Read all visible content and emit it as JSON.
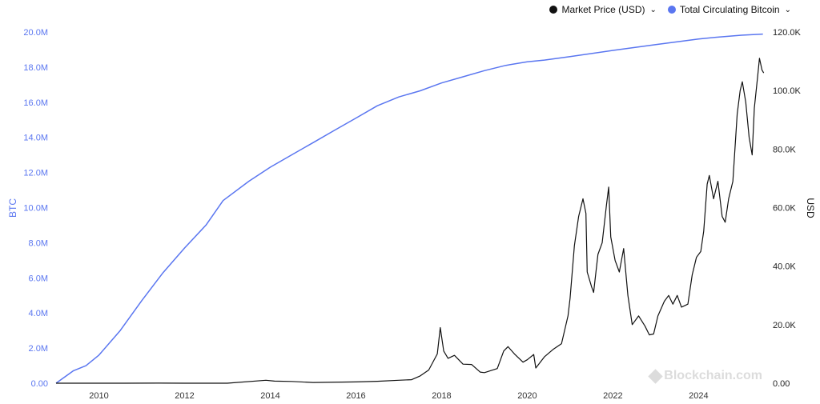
{
  "legend": {
    "price_label": "Market Price (USD)",
    "supply_label": "Total Circulating Bitcoin",
    "price_color": "#111111",
    "supply_color": "#5a76f0",
    "chevron_icon": "chevron-down-icon"
  },
  "watermark": "Blockchain.com",
  "chart_data": {
    "type": "line",
    "left_axis": {
      "label": "BTC",
      "ticks": [
        "0.00",
        "2.0M",
        "4.0M",
        "6.0M",
        "8.0M",
        "10.0M",
        "12.0M",
        "14.0M",
        "16.0M",
        "18.0M",
        "20.0M"
      ],
      "range": [
        0,
        20000000
      ]
    },
    "right_axis": {
      "label": "USD",
      "ticks": [
        "0.00",
        "20.0K",
        "40.0K",
        "60.0K",
        "80.0K",
        "100.0K",
        "120.0K"
      ],
      "range": [
        0,
        120000
      ]
    },
    "x_axis": {
      "ticks": [
        "2010",
        "2012",
        "2014",
        "2016",
        "2018",
        "2020",
        "2022",
        "2024"
      ],
      "range": [
        2009.0,
        2025.6
      ]
    },
    "series": [
      {
        "name": "Total Circulating Bitcoin",
        "axis": "left",
        "color": "#5a76f0",
        "points": [
          [
            2009.0,
            0
          ],
          [
            2009.4,
            700000
          ],
          [
            2009.7,
            1000000
          ],
          [
            2010.0,
            1600000
          ],
          [
            2010.5,
            3000000
          ],
          [
            2011.0,
            4700000
          ],
          [
            2011.5,
            6300000
          ],
          [
            2012.0,
            7700000
          ],
          [
            2012.5,
            9000000
          ],
          [
            2012.9,
            10400000
          ],
          [
            2013.5,
            11500000
          ],
          [
            2014.0,
            12300000
          ],
          [
            2014.5,
            13000000
          ],
          [
            2015.0,
            13700000
          ],
          [
            2015.5,
            14400000
          ],
          [
            2016.0,
            15100000
          ],
          [
            2016.5,
            15800000
          ],
          [
            2017.0,
            16300000
          ],
          [
            2017.5,
            16650000
          ],
          [
            2018.0,
            17100000
          ],
          [
            2018.5,
            17450000
          ],
          [
            2019.0,
            17800000
          ],
          [
            2019.5,
            18100000
          ],
          [
            2020.0,
            18300000
          ],
          [
            2020.4,
            18400000
          ],
          [
            2021.0,
            18600000
          ],
          [
            2022.0,
            18950000
          ],
          [
            2023.0,
            19280000
          ],
          [
            2024.0,
            19600000
          ],
          [
            2024.4,
            19700000
          ],
          [
            2025.0,
            19820000
          ],
          [
            2025.5,
            19880000
          ]
        ]
      },
      {
        "name": "Market Price (USD)",
        "axis": "right",
        "color": "#111111",
        "points": [
          [
            2009.0,
            0
          ],
          [
            2010.6,
            0.07
          ],
          [
            2011.4,
            15
          ],
          [
            2012.0,
            5
          ],
          [
            2013.0,
            13
          ],
          [
            2013.9,
            1000
          ],
          [
            2014.1,
            700
          ],
          [
            2014.5,
            600
          ],
          [
            2015.0,
            250
          ],
          [
            2016.0,
            430
          ],
          [
            2016.5,
            650
          ],
          [
            2017.0,
            1000
          ],
          [
            2017.3,
            1200
          ],
          [
            2017.5,
            2500
          ],
          [
            2017.7,
            4500
          ],
          [
            2017.9,
            10000
          ],
          [
            2017.97,
            19000
          ],
          [
            2018.05,
            11000
          ],
          [
            2018.15,
            8500
          ],
          [
            2018.3,
            9500
          ],
          [
            2018.5,
            6500
          ],
          [
            2018.7,
            6400
          ],
          [
            2018.9,
            3800
          ],
          [
            2019.0,
            3600
          ],
          [
            2019.3,
            5000
          ],
          [
            2019.45,
            11000
          ],
          [
            2019.55,
            12500
          ],
          [
            2019.7,
            10000
          ],
          [
            2019.9,
            7200
          ],
          [
            2020.0,
            8000
          ],
          [
            2020.15,
            9800
          ],
          [
            2020.2,
            5200
          ],
          [
            2020.4,
            9000
          ],
          [
            2020.6,
            11500
          ],
          [
            2020.8,
            13500
          ],
          [
            2020.95,
            23000
          ],
          [
            2021.0,
            29000
          ],
          [
            2021.1,
            47000
          ],
          [
            2021.2,
            57000
          ],
          [
            2021.3,
            63000
          ],
          [
            2021.37,
            58000
          ],
          [
            2021.4,
            38000
          ],
          [
            2021.5,
            33000
          ],
          [
            2021.55,
            31000
          ],
          [
            2021.65,
            44000
          ],
          [
            2021.75,
            48000
          ],
          [
            2021.85,
            61000
          ],
          [
            2021.9,
            67000
          ],
          [
            2021.95,
            50000
          ],
          [
            2022.05,
            42000
          ],
          [
            2022.15,
            38000
          ],
          [
            2022.25,
            46000
          ],
          [
            2022.35,
            30000
          ],
          [
            2022.45,
            20000
          ],
          [
            2022.6,
            23000
          ],
          [
            2022.75,
            19500
          ],
          [
            2022.85,
            16500
          ],
          [
            2022.95,
            16800
          ],
          [
            2023.05,
            23000
          ],
          [
            2023.2,
            28000
          ],
          [
            2023.3,
            30000
          ],
          [
            2023.4,
            27000
          ],
          [
            2023.5,
            30000
          ],
          [
            2023.6,
            26000
          ],
          [
            2023.75,
            27000
          ],
          [
            2023.85,
            37000
          ],
          [
            2023.95,
            43000
          ],
          [
            2024.05,
            45000
          ],
          [
            2024.12,
            52000
          ],
          [
            2024.2,
            68000
          ],
          [
            2024.25,
            71000
          ],
          [
            2024.35,
            63000
          ],
          [
            2024.45,
            69000
          ],
          [
            2024.55,
            57000
          ],
          [
            2024.62,
            55000
          ],
          [
            2024.7,
            63000
          ],
          [
            2024.8,
            69000
          ],
          [
            2024.9,
            92000
          ],
          [
            2024.97,
            100000
          ],
          [
            2025.02,
            103000
          ],
          [
            2025.1,
            96000
          ],
          [
            2025.18,
            84000
          ],
          [
            2025.25,
            78000
          ],
          [
            2025.3,
            94000
          ],
          [
            2025.38,
            105000
          ],
          [
            2025.42,
            111000
          ],
          [
            2025.48,
            107000
          ],
          [
            2025.52,
            106000
          ]
        ]
      }
    ],
    "grid": false,
    "legend_position": "top-right"
  }
}
